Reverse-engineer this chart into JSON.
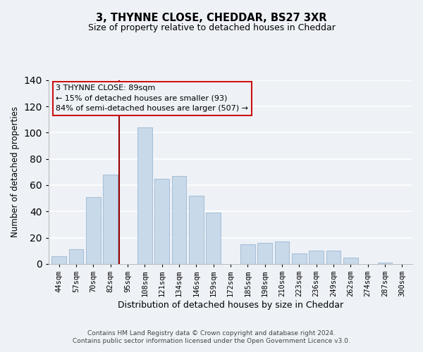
{
  "title": "3, THYNNE CLOSE, CHEDDAR, BS27 3XR",
  "subtitle": "Size of property relative to detached houses in Cheddar",
  "xlabel": "Distribution of detached houses by size in Cheddar",
  "ylabel": "Number of detached properties",
  "bar_color": "#c8daea",
  "bar_edge_color": "#a8c0d8",
  "categories": [
    "44sqm",
    "57sqm",
    "70sqm",
    "82sqm",
    "95sqm",
    "108sqm",
    "121sqm",
    "134sqm",
    "146sqm",
    "159sqm",
    "172sqm",
    "185sqm",
    "198sqm",
    "210sqm",
    "223sqm",
    "236sqm",
    "249sqm",
    "262sqm",
    "274sqm",
    "287sqm",
    "300sqm"
  ],
  "values": [
    6,
    11,
    51,
    68,
    0,
    104,
    65,
    67,
    52,
    39,
    0,
    15,
    16,
    17,
    8,
    10,
    10,
    5,
    0,
    1,
    0
  ],
  "ylim": [
    0,
    140
  ],
  "yticks": [
    0,
    20,
    40,
    60,
    80,
    100,
    120,
    140
  ],
  "vline_color": "#990000",
  "annotation_title": "3 THYNNE CLOSE: 89sqm",
  "annotation_line1": "← 15% of detached houses are smaller (93)",
  "annotation_line2": "84% of semi-detached houses are larger (507) →",
  "footer1": "Contains HM Land Registry data © Crown copyright and database right 2024.",
  "footer2": "Contains public sector information licensed under the Open Government Licence v3.0.",
  "background_color": "#eef2f7"
}
